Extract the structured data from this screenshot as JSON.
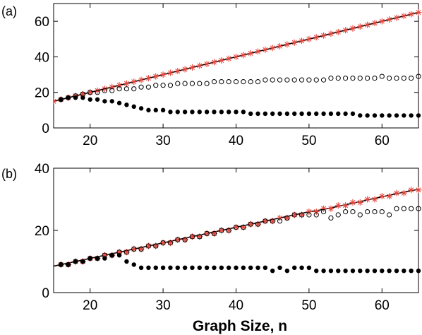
{
  "figure": {
    "xlabel": "Graph Size, n",
    "colors": {
      "star": "#e8463c",
      "line": "#000000",
      "open": "#000000",
      "filled": "#000000"
    }
  },
  "chart_data": [
    {
      "type": "scatter",
      "panel_label": "(a)",
      "xlim": [
        15,
        65
      ],
      "ylim": [
        0,
        70
      ],
      "xticks": [
        20,
        30,
        40,
        50,
        60
      ],
      "yticks": [
        0,
        20,
        40,
        60
      ],
      "xlabel": "",
      "ylabel": "",
      "grid": false,
      "x": [
        15,
        16,
        17,
        18,
        19,
        20,
        21,
        22,
        23,
        24,
        25,
        26,
        27,
        28,
        29,
        30,
        31,
        32,
        33,
        34,
        35,
        36,
        37,
        38,
        39,
        40,
        41,
        42,
        43,
        44,
        45,
        46,
        47,
        48,
        49,
        50,
        51,
        52,
        53,
        54,
        55,
        56,
        57,
        58,
        59,
        60,
        61,
        62,
        63,
        64,
        65
      ],
      "series": [
        {
          "marker": "line",
          "values": [
            15,
            16,
            17,
            18,
            19,
            20,
            21,
            22,
            23,
            24,
            25,
            26,
            27,
            28,
            29,
            30,
            31,
            32,
            33,
            34,
            35,
            36,
            37,
            38,
            39,
            40,
            41,
            42,
            43,
            44,
            45,
            46,
            47,
            48,
            49,
            50,
            51,
            52,
            53,
            54,
            55,
            56,
            57,
            58,
            59,
            60,
            61,
            62,
            63,
            64,
            65
          ]
        },
        {
          "marker": "star",
          "values": [
            15,
            16,
            17,
            18,
            19,
            20,
            21,
            22,
            23,
            24,
            25,
            26,
            27,
            28,
            29,
            30,
            31,
            32,
            33,
            34,
            35,
            36,
            37,
            38,
            39,
            40,
            41,
            42,
            43,
            44,
            45,
            46,
            47,
            48,
            49,
            50,
            51,
            52,
            53,
            54,
            55,
            56,
            57,
            58,
            59,
            60,
            61,
            62,
            63,
            64,
            65
          ]
        },
        {
          "marker": "open-circle",
          "values": [
            null,
            16,
            17,
            18,
            19,
            20,
            20,
            21,
            21,
            22,
            22,
            22,
            23,
            23,
            24,
            24,
            24,
            25,
            25,
            25,
            25,
            25,
            26,
            26,
            26,
            26,
            26,
            26,
            26,
            27,
            27,
            27,
            27,
            27,
            27,
            27,
            27,
            27,
            28,
            28,
            28,
            28,
            28,
            28,
            28,
            29,
            28,
            28,
            28,
            28,
            29
          ]
        },
        {
          "marker": "filled-circle",
          "values": [
            null,
            16,
            17,
            17,
            17,
            16,
            16,
            15,
            15,
            14,
            13,
            12,
            11,
            10,
            10,
            10,
            9,
            9,
            9,
            9,
            9,
            9,
            9,
            9,
            9,
            9,
            9,
            8,
            8,
            8,
            8,
            8,
            8,
            8,
            8,
            8,
            8,
            8,
            8,
            8,
            8,
            8,
            7,
            7,
            7,
            7,
            7,
            7,
            7,
            7,
            7
          ]
        }
      ]
    },
    {
      "type": "scatter",
      "panel_label": "(b)",
      "xlim": [
        15,
        65
      ],
      "ylim": [
        0,
        40
      ],
      "xticks": [
        20,
        30,
        40,
        50,
        60
      ],
      "yticks": [
        0,
        20,
        40
      ],
      "xlabel": "Graph Size, n",
      "ylabel": "",
      "grid": false,
      "x": [
        15,
        16,
        17,
        18,
        19,
        20,
        21,
        22,
        23,
        24,
        25,
        26,
        27,
        28,
        29,
        30,
        31,
        32,
        33,
        34,
        35,
        36,
        37,
        38,
        39,
        40,
        41,
        42,
        43,
        44,
        45,
        46,
        47,
        48,
        49,
        50,
        51,
        52,
        53,
        54,
        55,
        56,
        57,
        58,
        59,
        60,
        61,
        62,
        63,
        64,
        65
      ],
      "series": [
        {
          "marker": "line",
          "values": [
            8.5,
            9,
            9.5,
            10,
            10.5,
            11,
            11.5,
            12,
            12.5,
            13,
            13.5,
            14,
            14.5,
            15,
            15.5,
            16,
            16.5,
            17,
            17.5,
            18,
            18.5,
            19,
            19.5,
            20,
            20.5,
            21,
            21.5,
            22,
            22.5,
            23,
            23.5,
            24,
            24.5,
            25,
            25.5,
            26,
            26.3,
            26.8,
            27.2,
            27.8,
            28.2,
            28.8,
            29.2,
            29.8,
            30.3,
            30.8,
            31.3,
            31.8,
            32.3,
            32.8,
            33.2
          ]
        },
        {
          "marker": "star",
          "values": [
            null,
            9,
            9,
            10,
            10,
            11,
            11,
            12,
            12,
            13,
            13,
            14,
            14,
            15,
            15,
            16,
            16,
            17,
            17,
            18,
            18,
            19,
            19,
            20,
            20,
            21,
            21,
            22,
            22,
            23,
            23,
            24,
            24,
            25,
            25,
            26,
            26,
            27,
            27,
            28,
            28,
            29,
            29,
            30,
            30,
            31,
            31,
            32,
            32,
            33,
            33
          ]
        },
        {
          "marker": "open-circle",
          "values": [
            null,
            9,
            9,
            10,
            10,
            11,
            11,
            12,
            12,
            13,
            13,
            14,
            14,
            15,
            15,
            16,
            16,
            17,
            17,
            18,
            18,
            19,
            19,
            20,
            20,
            21,
            21,
            22,
            22,
            23,
            23,
            23,
            24,
            25,
            25,
            25,
            25,
            26,
            24,
            25,
            26,
            26,
            25,
            26,
            26,
            26,
            25,
            27,
            27,
            27,
            27
          ]
        },
        {
          "marker": "filled-circle",
          "values": [
            null,
            9,
            9,
            10,
            10,
            11,
            11,
            11,
            12,
            12,
            10,
            9,
            8,
            8,
            8,
            8,
            8,
            8,
            8,
            8,
            8,
            8,
            8,
            8,
            8,
            8,
            8,
            8,
            8,
            8,
            7,
            8,
            7,
            8,
            8,
            8,
            7,
            7,
            7,
            7,
            7,
            7,
            7,
            7,
            7,
            7,
            7,
            7,
            7,
            7,
            7
          ]
        }
      ]
    }
  ]
}
